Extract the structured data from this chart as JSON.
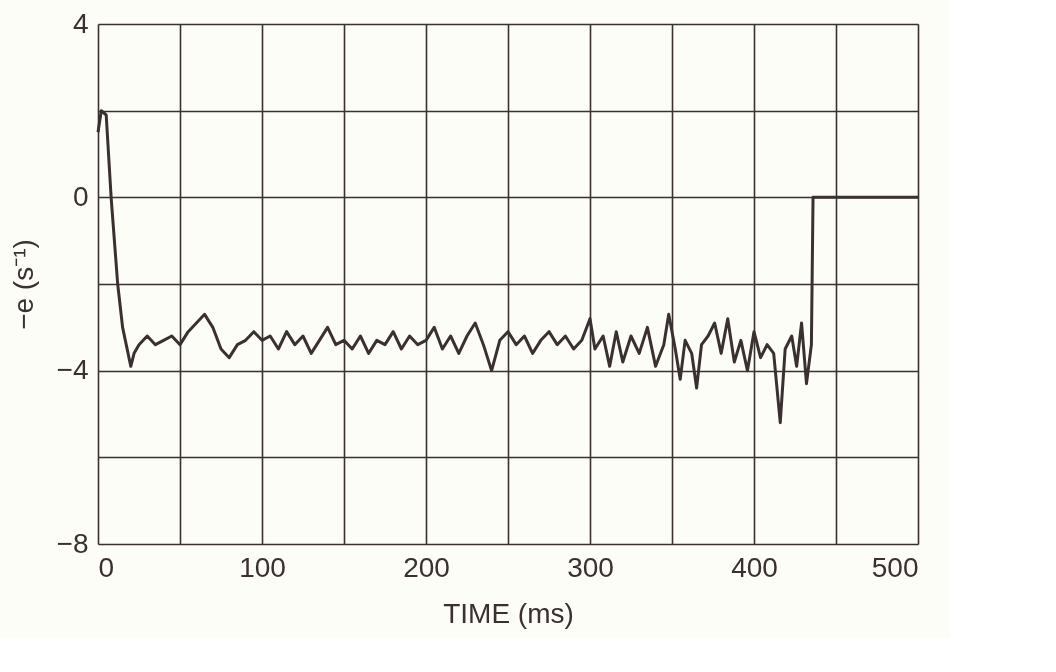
{
  "chart_data": {
    "type": "line",
    "xlabel": "TIME (ms)",
    "ylabel": "−e (s⁻¹)",
    "x": [
      0,
      2,
      5,
      8,
      12,
      15,
      20,
      22,
      25,
      30,
      35,
      40,
      45,
      50,
      55,
      60,
      65,
      70,
      75,
      80,
      85,
      90,
      95,
      100,
      105,
      110,
      115,
      120,
      125,
      130,
      135,
      140,
      145,
      150,
      155,
      160,
      165,
      170,
      175,
      180,
      185,
      190,
      195,
      200,
      205,
      210,
      215,
      220,
      225,
      230,
      235,
      240,
      245,
      250,
      255,
      260,
      265,
      270,
      275,
      280,
      285,
      290,
      295,
      300,
      303,
      308,
      312,
      316,
      320,
      325,
      330,
      335,
      340,
      345,
      348,
      352,
      355,
      358,
      362,
      365,
      368,
      372,
      376,
      380,
      384,
      388,
      392,
      396,
      400,
      404,
      408,
      412,
      416,
      419,
      423,
      426,
      429,
      432,
      435,
      436,
      500
    ],
    "series": [
      {
        "color": "#3a3032",
        "values": [
          1.5,
          2.0,
          1.9,
          0,
          -2,
          -3,
          -3.9,
          -3.6,
          -3.4,
          -3.2,
          -3.4,
          -3.3,
          -3.2,
          -3.4,
          -3.1,
          -2.9,
          -2.7,
          -3.0,
          -3.5,
          -3.7,
          -3.4,
          -3.3,
          -3.1,
          -3.3,
          -3.2,
          -3.5,
          -3.1,
          -3.4,
          -3.2,
          -3.6,
          -3.3,
          -3.0,
          -3.4,
          -3.3,
          -3.5,
          -3.2,
          -3.6,
          -3.3,
          -3.4,
          -3.1,
          -3.5,
          -3.2,
          -3.4,
          -3.3,
          -3.0,
          -3.5,
          -3.2,
          -3.6,
          -3.2,
          -2.9,
          -3.4,
          -4.0,
          -3.3,
          -3.1,
          -3.4,
          -3.2,
          -3.6,
          -3.3,
          -3.1,
          -3.4,
          -3.2,
          -3.5,
          -3.3,
          -2.8,
          -3.5,
          -3.2,
          -3.9,
          -3.1,
          -3.8,
          -3.2,
          -3.6,
          -3.0,
          -3.9,
          -3.4,
          -2.7,
          -3.5,
          -4.2,
          -3.3,
          -3.6,
          -4.4,
          -3.4,
          -3.2,
          -2.9,
          -3.6,
          -2.8,
          -3.8,
          -3.3,
          -4.0,
          -3.1,
          -3.7,
          -3.4,
          -3.6,
          -5.2,
          -3.5,
          -3.2,
          -3.9,
          -2.9,
          -4.3,
          -3.4,
          0,
          0
        ]
      }
    ],
    "xlim": [
      0,
      500
    ],
    "xticks": [
      0,
      {
        "value": 50,
        "label": null
      },
      100,
      {
        "value": 150,
        "label": null
      },
      200,
      {
        "value": 250,
        "label": null
      },
      300,
      {
        "value": 350,
        "label": null
      },
      400,
      {
        "value": 450,
        "label": null
      },
      500
    ],
    "ylim": [
      -8,
      4
    ],
    "yticks": [
      {
        "value": -8,
        "label": "−8"
      },
      {
        "value": -6,
        "label": null
      },
      {
        "value": -4,
        "label": "−4"
      },
      {
        "value": -2,
        "label": null
      },
      0,
      {
        "value": 2,
        "label": null
      },
      4
    ],
    "grid": true,
    "legend": false,
    "marker": "none",
    "line_style": "solid"
  }
}
